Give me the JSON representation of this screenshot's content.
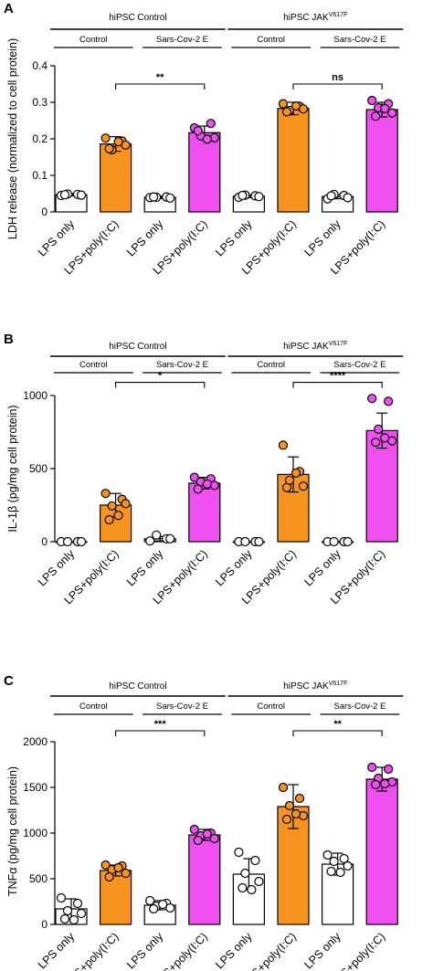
{
  "colors": {
    "orange": "#F7941D",
    "magenta": "#EE4FEE",
    "white": "#FFFFFF",
    "stroke": "#000000"
  },
  "chart_data": [
    {
      "type": "bar",
      "panel": "A",
      "ylabel": "LDH release (normalized to cell protein)",
      "ylim": [
        0,
        0.4
      ],
      "yticks": [
        0,
        0.1,
        0.2,
        0.3,
        0.4
      ],
      "ytick_labels": [
        "0",
        "0.1",
        "0.2",
        "0.3",
        "0.4"
      ],
      "categories": [
        "LPS only",
        "LPS+poly(I:C)",
        "LPS only",
        "LPS+poly(I:C)",
        "LPS only",
        "LPS+poly(I:C)",
        "LPS only",
        "LPS+poly(I:C)"
      ],
      "bar_colors": [
        "white",
        "orange",
        "white",
        "magenta",
        "white",
        "orange",
        "white",
        "magenta"
      ],
      "values": [
        0.047,
        0.186,
        0.04,
        0.217,
        0.043,
        0.283,
        0.042,
        0.28
      ],
      "errors": [
        0.003,
        0.02,
        0.003,
        0.018,
        0.004,
        0.017,
        0.006,
        0.02
      ],
      "points": [
        [
          0.045,
          0.048,
          0.049,
          0.046,
          0.047
        ],
        [
          0.202,
          0.194,
          0.17,
          0.183,
          0.173,
          0.192
        ],
        [
          0.039,
          0.041,
          0.04,
          0.038,
          0.041
        ],
        [
          0.23,
          0.242,
          0.208,
          0.203,
          0.222,
          0.199
        ],
        [
          0.04,
          0.044,
          0.046,
          0.042,
          0.045
        ],
        [
          0.296,
          0.289,
          0.278,
          0.282,
          0.274,
          0.29
        ],
        [
          0.036,
          0.045,
          0.048,
          0.039,
          0.044
        ],
        [
          0.305,
          0.296,
          0.285,
          0.271,
          0.262,
          0.283
        ]
      ],
      "groups": [
        {
          "label": "hiPSC Control",
          "label_sup": "",
          "from": 0,
          "to": 3
        },
        {
          "label": "hiPSC JAK",
          "label_sup": "V617F",
          "from": 4,
          "to": 7
        }
      ],
      "subgroups": [
        {
          "label": "Control",
          "from": 0,
          "to": 1
        },
        {
          "label": "Sars-Cov-2 E",
          "from": 2,
          "to": 3
        },
        {
          "label": "Control",
          "from": 4,
          "to": 5
        },
        {
          "label": "Sars-Cov-2 E",
          "from": 6,
          "to": 7
        }
      ],
      "significance": [
        {
          "from": 1,
          "to": 3,
          "label": "**",
          "y": 0.35
        },
        {
          "from": 5,
          "to": 7,
          "label": "ns",
          "y": 0.35
        }
      ]
    },
    {
      "type": "bar",
      "panel": "B",
      "ylabel": "IL-1β (pg/mg cell protein)",
      "ylim": [
        0,
        1000
      ],
      "yticks": [
        0,
        500,
        1000
      ],
      "ytick_labels": [
        "0",
        "500",
        "1000"
      ],
      "categories": [
        "LPS only",
        "LPS+poly(I:C)",
        "LPS only",
        "LPS+poly(I:C)",
        "LPS only",
        "LPS+poly(I:C)",
        "LPS only",
        "LPS+poly(I:C)"
      ],
      "bar_colors": [
        "white",
        "orange",
        "white",
        "magenta",
        "white",
        "orange",
        "white",
        "magenta"
      ],
      "values": [
        0,
        250,
        20,
        400,
        0,
        460,
        0,
        760
      ],
      "errors": [
        0,
        80,
        15,
        40,
        0,
        120,
        0,
        120
      ],
      "points": [
        [
          0,
          0,
          0,
          0
        ],
        [
          330,
          290,
          245,
          260,
          150,
          180
        ],
        [
          5,
          20,
          45,
          20
        ],
        [
          440,
          430,
          410,
          385,
          360,
          395
        ],
        [
          0,
          0,
          0,
          0
        ],
        [
          660,
          480,
          420,
          380,
          370,
          470
        ],
        [
          0,
          0,
          0,
          0
        ],
        [
          980,
          960,
          770,
          690,
          680,
          710
        ]
      ],
      "groups": [
        {
          "label": "hiPSC Control",
          "label_sup": "",
          "from": 0,
          "to": 3
        },
        {
          "label": "hiPSC JAK",
          "label_sup": "V617F",
          "from": 4,
          "to": 7
        }
      ],
      "subgroups": [
        {
          "label": "Control",
          "from": 0,
          "to": 1
        },
        {
          "label": "Sars-Cov-2 E",
          "from": 2,
          "to": 3
        },
        {
          "label": "Control",
          "from": 4,
          "to": 5
        },
        {
          "label": "Sars-Cov-2 E",
          "from": 6,
          "to": 7
        }
      ],
      "significance": [
        {
          "from": 1,
          "to": 3,
          "label": "*",
          "y": 1090
        },
        {
          "from": 5,
          "to": 7,
          "label": "****",
          "y": 1090
        }
      ]
    },
    {
      "type": "bar",
      "panel": "C",
      "ylabel": "TNFα (pg/mg cell protein)",
      "ylim": [
        0,
        2000
      ],
      "yticks": [
        0,
        500,
        1000,
        1500,
        2000
      ],
      "ytick_labels": [
        "0",
        "500",
        "1000",
        "1500",
        "2000"
      ],
      "categories": [
        "LPS only",
        "LPS+poly(I:C)",
        "LPS only",
        "LPS+poly(I:C)",
        "LPS only",
        "LPS+poly(I:C)",
        "LPS only",
        "LPS+poly(I:C)"
      ],
      "bar_colors": [
        "white",
        "orange",
        "white",
        "magenta",
        "white",
        "orange",
        "white",
        "magenta"
      ],
      "values": [
        170,
        590,
        210,
        980,
        550,
        1290,
        660,
        1590
      ],
      "errors": [
        110,
        60,
        50,
        60,
        170,
        240,
        120,
        130
      ],
      "points": [
        [
          290,
          230,
          150,
          120,
          60,
          50
        ],
        [
          650,
          640,
          600,
          560,
          520,
          620
        ],
        [
          260,
          230,
          200,
          180,
          170,
          220
        ],
        [
          1040,
          1000,
          970,
          940,
          920,
          990
        ],
        [
          790,
          700,
          560,
          470,
          400,
          380
        ],
        [
          1500,
          1380,
          1300,
          1190,
          1150,
          1210
        ],
        [
          760,
          720,
          690,
          640,
          580,
          570
        ],
        [
          1720,
          1700,
          1600,
          1560,
          1530,
          1540
        ]
      ],
      "groups": [
        {
          "label": "hiPSC Control",
          "label_sup": "",
          "from": 0,
          "to": 3
        },
        {
          "label": "hiPSC JAK",
          "label_sup": "V617F",
          "from": 4,
          "to": 7
        }
      ],
      "subgroups": [
        {
          "label": "Control",
          "from": 0,
          "to": 1
        },
        {
          "label": "Sars-Cov-2 E",
          "from": 2,
          "to": 3
        },
        {
          "label": "Control",
          "from": 4,
          "to": 5
        },
        {
          "label": "Sars-Cov-2 E",
          "from": 6,
          "to": 7
        }
      ],
      "significance": [
        {
          "from": 1,
          "to": 3,
          "label": "***",
          "y": 2120
        },
        {
          "from": 5,
          "to": 7,
          "label": "**",
          "y": 2120
        }
      ]
    }
  ]
}
